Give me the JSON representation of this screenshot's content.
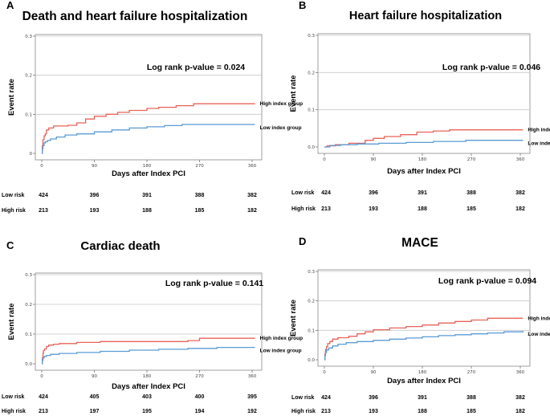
{
  "chart_data": [
    {
      "type": "line",
      "panel": "A",
      "title": "Death and heart failure hospitalization",
      "xlabel": "Days after Index PCI",
      "ylabel": "Event rate",
      "xlim": [
        0,
        365
      ],
      "ylim": [
        0,
        0.3
      ],
      "xticks": [
        "0",
        "90",
        "180",
        "270",
        "360"
      ],
      "yticks": [
        "0",
        "0.1",
        "0.2",
        "0.3"
      ],
      "annotation": "Log rank p-value = 0.024",
      "grid": "horizontal",
      "series": [
        {
          "name": "High index group",
          "color": "#e8635a",
          "x": [
            0,
            1,
            2,
            4,
            6,
            8,
            12,
            20,
            45,
            60,
            75,
            90,
            110,
            130,
            150,
            180,
            200,
            230,
            260,
            365
          ],
          "y": [
            0,
            0.02,
            0.035,
            0.045,
            0.05,
            0.06,
            0.065,
            0.07,
            0.072,
            0.078,
            0.088,
            0.095,
            0.1,
            0.105,
            0.11,
            0.115,
            0.118,
            0.122,
            0.127,
            0.127
          ]
        },
        {
          "name": "Low index group",
          "color": "#5b9bd5",
          "x": [
            0,
            1,
            2,
            4,
            6,
            10,
            15,
            25,
            40,
            60,
            90,
            120,
            150,
            180,
            210,
            240,
            365
          ],
          "y": [
            0,
            0.012,
            0.02,
            0.027,
            0.03,
            0.033,
            0.037,
            0.042,
            0.047,
            0.05,
            0.055,
            0.06,
            0.065,
            0.068,
            0.071,
            0.074,
            0.074
          ]
        }
      ],
      "risk_table": {
        "rows": [
          {
            "label": "Low risk",
            "values": [
              "424",
              "396",
              "391",
              "388",
              "382"
            ]
          },
          {
            "label": "High risk",
            "values": [
              "213",
              "193",
              "188",
              "185",
              "182"
            ]
          }
        ]
      }
    },
    {
      "type": "line",
      "panel": "B",
      "title": "Heart failure hospitalization",
      "xlabel": "Days after Index PCI",
      "ylabel": "Event rate",
      "xlim": [
        0,
        365
      ],
      "ylim": [
        0,
        0.3
      ],
      "xticks": [
        "0",
        "90",
        "180",
        "270",
        "360"
      ],
      "yticks": [
        "0.0",
        "0.1",
        "0.2",
        "0.3"
      ],
      "annotation": "Log rank p-value = 0.046",
      "grid": "horizontal",
      "series": [
        {
          "name": "High index group",
          "color": "#e8635a",
          "x": [
            0,
            5,
            20,
            45,
            75,
            90,
            110,
            140,
            170,
            200,
            230,
            365
          ],
          "y": [
            0,
            0.003,
            0.006,
            0.01,
            0.018,
            0.023,
            0.028,
            0.033,
            0.04,
            0.043,
            0.046,
            0.046
          ]
        },
        {
          "name": "Low index group",
          "color": "#5b9bd5",
          "x": [
            0,
            10,
            30,
            60,
            100,
            150,
            200,
            260,
            365
          ],
          "y": [
            0,
            0.004,
            0.006,
            0.008,
            0.01,
            0.012,
            0.015,
            0.018,
            0.018
          ]
        }
      ],
      "risk_table": {
        "rows": [
          {
            "label": "Low risk",
            "values": [
              "424",
              "396",
              "391",
              "388",
              "382"
            ]
          },
          {
            "label": "High risk",
            "values": [
              "213",
              "193",
              "188",
              "185",
              "182"
            ]
          }
        ]
      }
    },
    {
      "type": "line",
      "panel": "C",
      "title": "Cardiac death",
      "xlabel": "Days after Index PCI",
      "ylabel": "Event rate",
      "xlim": [
        0,
        365
      ],
      "ylim": [
        0,
        0.3
      ],
      "xticks": [
        "0",
        "90",
        "180",
        "270",
        "360"
      ],
      "yticks": [
        "0.0",
        "0.1",
        "0.2",
        "0.3"
      ],
      "annotation": "Log rank p-value = 0.141",
      "grid": "horizontal",
      "series": [
        {
          "name": "High index group",
          "color": "#e8635a",
          "x": [
            0,
            1,
            2,
            3,
            5,
            8,
            12,
            20,
            30,
            60,
            100,
            250,
            270,
            365
          ],
          "y": [
            0,
            0.02,
            0.035,
            0.045,
            0.05,
            0.058,
            0.063,
            0.066,
            0.068,
            0.072,
            0.075,
            0.078,
            0.086,
            0.086
          ]
        },
        {
          "name": "Low index group",
          "color": "#5b9bd5",
          "x": [
            0,
            1,
            2,
            4,
            8,
            15,
            30,
            60,
            100,
            150,
            200,
            250,
            300,
            365
          ],
          "y": [
            0,
            0.012,
            0.02,
            0.025,
            0.028,
            0.032,
            0.035,
            0.038,
            0.042,
            0.046,
            0.049,
            0.052,
            0.055,
            0.055
          ]
        }
      ],
      "risk_table": {
        "rows": [
          {
            "label": "Low risk",
            "values": [
              "424",
              "405",
              "403",
              "400",
              "395"
            ]
          },
          {
            "label": "High risk",
            "values": [
              "213",
              "197",
              "195",
              "194",
              "192"
            ]
          }
        ]
      }
    },
    {
      "type": "line",
      "panel": "D",
      "title": "MACE",
      "xlabel": "Days after Index PCI",
      "ylabel": "Event rate",
      "xlim": [
        0,
        365
      ],
      "ylim": [
        0,
        0.3
      ],
      "xticks": [
        "0",
        "90",
        "180",
        "270",
        "360"
      ],
      "yticks": [
        "0.0",
        "0.1",
        "0.2",
        "0.3"
      ],
      "annotation": "Log rank p-value = 0.094",
      "grid": "horizontal",
      "series": [
        {
          "name": "High index group",
          "color": "#e8635a",
          "x": [
            0,
            1,
            2,
            4,
            6,
            10,
            15,
            25,
            45,
            60,
            75,
            90,
            120,
            150,
            180,
            210,
            240,
            270,
            300,
            365
          ],
          "y": [
            0,
            0.02,
            0.035,
            0.045,
            0.055,
            0.062,
            0.07,
            0.075,
            0.08,
            0.088,
            0.095,
            0.102,
            0.108,
            0.113,
            0.118,
            0.125,
            0.13,
            0.135,
            0.141,
            0.141
          ]
        },
        {
          "name": "Low index group",
          "color": "#5b9bd5",
          "x": [
            0,
            1,
            2,
            4,
            8,
            15,
            25,
            40,
            60,
            90,
            120,
            150,
            180,
            210,
            240,
            270,
            300,
            330,
            365
          ],
          "y": [
            0,
            0.015,
            0.025,
            0.033,
            0.04,
            0.047,
            0.053,
            0.058,
            0.062,
            0.066,
            0.07,
            0.074,
            0.078,
            0.082,
            0.085,
            0.088,
            0.091,
            0.095,
            0.098
          ]
        }
      ],
      "risk_table": {
        "rows": [
          {
            "label": "Low risk",
            "values": [
              "424",
              "396",
              "391",
              "388",
              "382"
            ]
          },
          {
            "label": "High risk",
            "values": [
              "213",
              "193",
              "188",
              "185",
              "182"
            ]
          }
        ]
      }
    }
  ]
}
